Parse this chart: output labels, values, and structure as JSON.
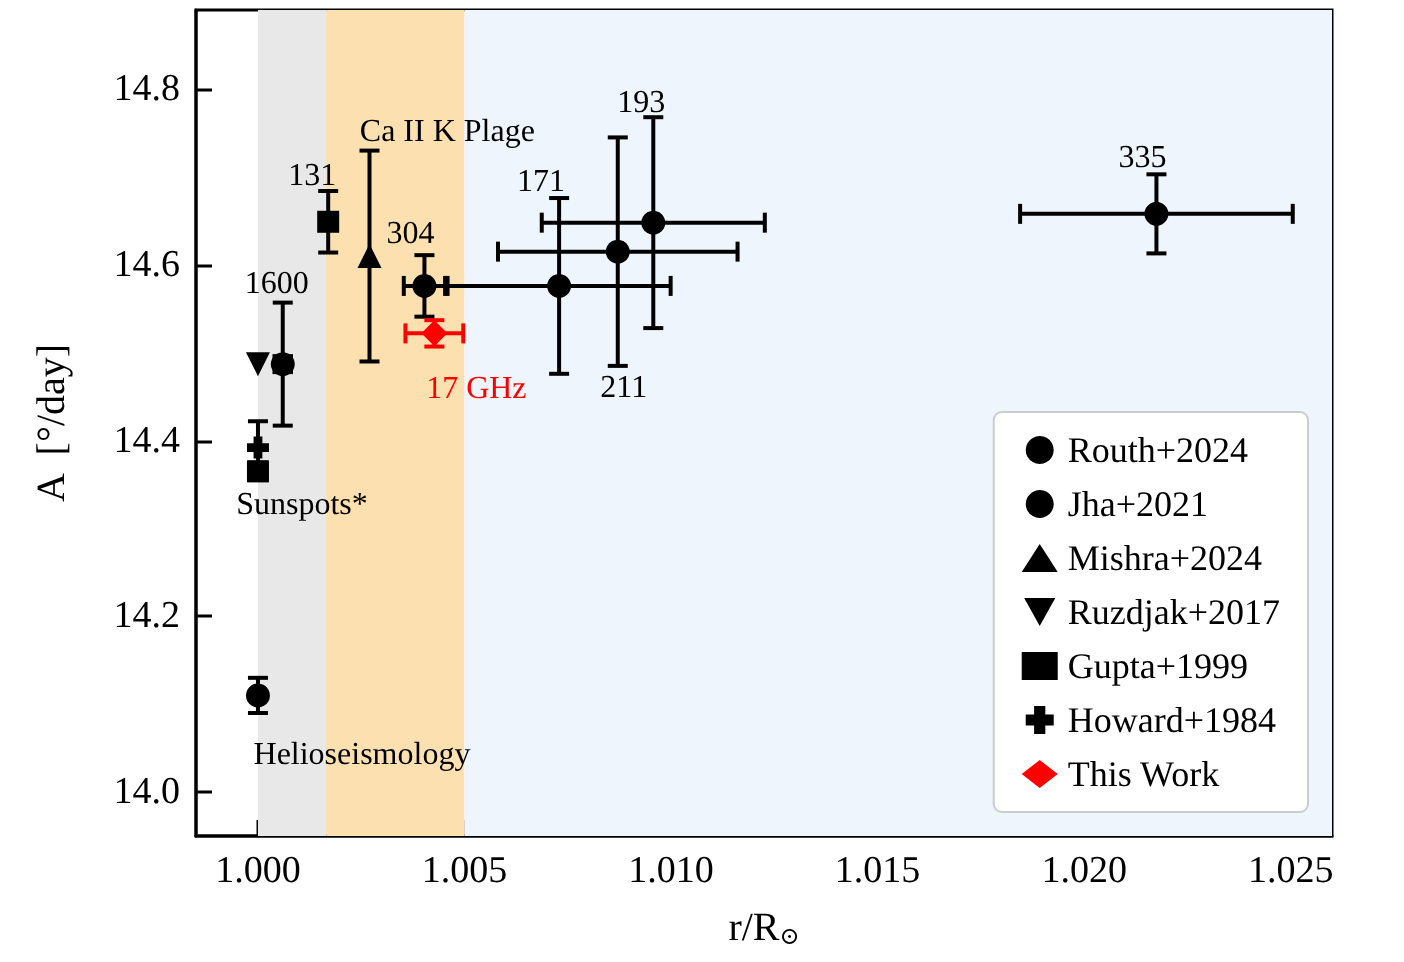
{
  "chart_data": {
    "type": "scatter",
    "xlabel": "r/R$_{⊙}$",
    "ylabel": "A  [°/day]",
    "xlim": [
      0.9985,
      1.026
    ],
    "ylim": [
      13.95,
      14.89
    ],
    "xticks": [
      {
        "value": 1.0,
        "label": "1.000"
      },
      {
        "value": 1.005,
        "label": "1.005"
      },
      {
        "value": 1.01,
        "label": "1.010"
      },
      {
        "value": 1.015,
        "label": "1.015"
      },
      {
        "value": 1.02,
        "label": "1.020"
      },
      {
        "value": 1.025,
        "label": "1.025"
      }
    ],
    "yticks": [
      {
        "value": 14.0,
        "label": "14.0"
      },
      {
        "value": 14.2,
        "label": "14.2"
      },
      {
        "value": 14.4,
        "label": "14.4"
      },
      {
        "value": 14.6,
        "label": "14.6"
      },
      {
        "value": 14.8,
        "label": "14.8"
      }
    ],
    "grid": false,
    "legend": "bottom right",
    "bands": [
      {
        "axis": "x",
        "from": 1.0,
        "to": 1.00165,
        "color": "#e8e8e8"
      },
      {
        "axis": "x",
        "from": 1.00165,
        "to": 1.005,
        "color": "#fde0b0",
        "label": "Ca II K Plage"
      },
      {
        "axis": "x",
        "from": 1.005,
        "to": 1.026,
        "color": "#eef5fc"
      }
    ],
    "series": [
      {
        "name": "Routh+2024",
        "color": "#000000",
        "marker": "circle",
        "x": [
          1.0,
          1.00403,
          1.00729,
          1.00871,
          1.00957,
          1.02175
        ],
        "values": [
          14.11,
          14.576,
          14.576,
          14.615,
          14.648,
          14.658
        ],
        "errors": [
          0.02,
          0.035,
          0.1,
          0.13,
          0.12,
          0.045
        ],
        "xerrors": [
          null,
          0.0005,
          0.0027,
          0.0029,
          0.0027,
          0.0033
        ]
      },
      {
        "name": "Jha+2021",
        "color": "#000000",
        "marker": "circle",
        "x": [
          1.0006
        ],
        "values": [
          14.487
        ],
        "errors": [
          0.07
        ],
        "xerrors": [
          0.0002
        ]
      },
      {
        "name": "Mishra+2024",
        "color": "#000000",
        "marker": "triangle",
        "x": [
          1.0027
        ],
        "values": [
          14.61
        ],
        "errors": [
          0.12
        ]
      },
      {
        "name": "Ruzdjak+2017",
        "color": "#000000",
        "marker": "triangle-down",
        "x": [
          1.0
        ],
        "values": [
          14.487
        ]
      },
      {
        "name": "Gupta+1999",
        "color": "#000000",
        "marker": "square",
        "x": [
          1.0,
          1.0017
        ],
        "values": [
          14.365,
          14.649
        ],
        "errors": [
          0.01,
          0.035
        ]
      },
      {
        "name": "Howard+1984",
        "color": "#000000",
        "marker": "cross",
        "x": [
          1.0
        ],
        "values": [
          14.392
        ],
        "errors": [
          0.03
        ]
      },
      {
        "name": "This Work",
        "color": "#ff0000",
        "marker": "diamond",
        "x": [
          1.00427
        ],
        "values": [
          14.522
        ],
        "errors": [
          0.015
        ],
        "xerrors": [
          0.0007
        ]
      }
    ],
    "annotations": [
      {
        "text": "131",
        "x": 1.0017,
        "y": 14.649
      },
      {
        "text": "304",
        "x": 1.00403,
        "y": 14.576
      },
      {
        "text": "1600",
        "x": 1.0006,
        "y": 14.487
      },
      {
        "text": "17 GHz",
        "x": 1.00427,
        "y": 14.522
      },
      {
        "text": "171",
        "x": 1.00729,
        "y": 14.576
      },
      {
        "text": "193",
        "x": 1.00957,
        "y": 14.768
      },
      {
        "text": "211",
        "x": 1.00871,
        "y": 14.485
      },
      {
        "text": "335",
        "x": 1.02175,
        "y": 14.658
      },
      {
        "text": "Sunspots*",
        "x": 1.0,
        "y": 14.365
      },
      {
        "text": "Helioseismology",
        "x": 1.0,
        "y": 14.11
      }
    ]
  }
}
